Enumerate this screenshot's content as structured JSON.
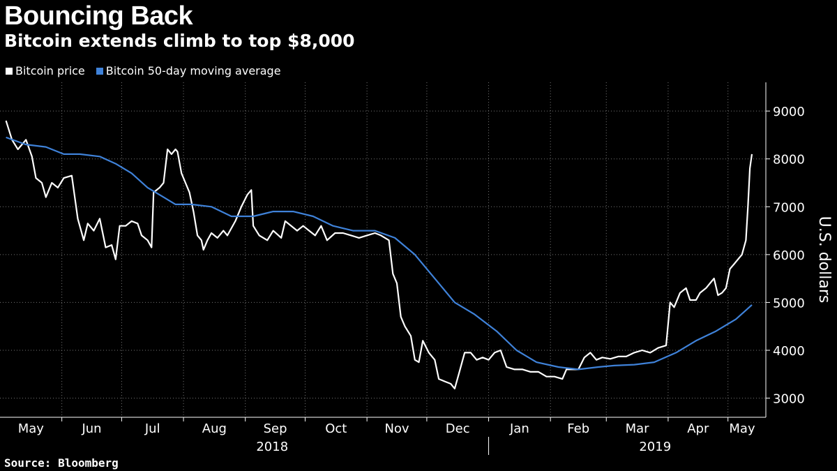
{
  "header": {
    "title": "Bouncing Back",
    "subtitle": "Bitcoin extends climb to top $8,000"
  },
  "footer": {
    "source": "Source: Bloomberg"
  },
  "chart_data": {
    "type": "line",
    "title": "Bouncing Back",
    "subtitle": "Bitcoin extends climb to top $8,000",
    "ylabel": "U.S. dollars",
    "ylim": [
      2600,
      9600
    ],
    "yticks": [
      3000,
      4000,
      5000,
      6000,
      7000,
      8000,
      9000
    ],
    "grid": true,
    "legend_position": "top-left",
    "x_months": [
      "May",
      "Jun",
      "Jul",
      "Aug",
      "Sep",
      "Oct",
      "Nov",
      "Dec",
      "Jan",
      "Feb",
      "Mar",
      "Apr",
      "May"
    ],
    "x_years": [
      "2018",
      "2019"
    ],
    "colors": {
      "price": "#ffffff",
      "ma": "#3f82d9",
      "grid": "#777777",
      "background": "#000000"
    },
    "series": [
      {
        "name": "Bitcoin price",
        "color": "#ffffff",
        "points": [
          [
            "2018-05-04",
            8800
          ],
          [
            "2018-05-07",
            8400
          ],
          [
            "2018-05-10",
            8200
          ],
          [
            "2018-05-14",
            8400
          ],
          [
            "2018-05-17",
            8050
          ],
          [
            "2018-05-19",
            7600
          ],
          [
            "2018-05-22",
            7500
          ],
          [
            "2018-05-24",
            7200
          ],
          [
            "2018-05-27",
            7500
          ],
          [
            "2018-05-30",
            7400
          ],
          [
            "2018-06-02",
            7600
          ],
          [
            "2018-06-06",
            7650
          ],
          [
            "2018-06-09",
            6750
          ],
          [
            "2018-06-12",
            6300
          ],
          [
            "2018-06-14",
            6650
          ],
          [
            "2018-06-17",
            6500
          ],
          [
            "2018-06-20",
            6750
          ],
          [
            "2018-06-23",
            6150
          ],
          [
            "2018-06-26",
            6200
          ],
          [
            "2018-06-28",
            5900
          ],
          [
            "2018-06-30",
            6600
          ],
          [
            "2018-07-03",
            6600
          ],
          [
            "2018-07-06",
            6700
          ],
          [
            "2018-07-09",
            6650
          ],
          [
            "2018-07-11",
            6400
          ],
          [
            "2018-07-14",
            6300
          ],
          [
            "2018-07-16",
            6150
          ],
          [
            "2018-07-17",
            7300
          ],
          [
            "2018-07-20",
            7400
          ],
          [
            "2018-07-22",
            7500
          ],
          [
            "2018-07-24",
            8200
          ],
          [
            "2018-07-26",
            8100
          ],
          [
            "2018-07-28",
            8200
          ],
          [
            "2018-07-29",
            8150
          ],
          [
            "2018-07-31",
            7700
          ],
          [
            "2018-08-02",
            7500
          ],
          [
            "2018-08-04",
            7300
          ],
          [
            "2018-08-06",
            6900
          ],
          [
            "2018-08-08",
            6400
          ],
          [
            "2018-08-10",
            6300
          ],
          [
            "2018-08-11",
            6100
          ],
          [
            "2018-08-13",
            6300
          ],
          [
            "2018-08-15",
            6450
          ],
          [
            "2018-08-18",
            6350
          ],
          [
            "2018-08-21",
            6500
          ],
          [
            "2018-08-23",
            6400
          ],
          [
            "2018-08-27",
            6700
          ],
          [
            "2018-08-30",
            7000
          ],
          [
            "2018-09-02",
            7250
          ],
          [
            "2018-09-04",
            7350
          ],
          [
            "2018-09-05",
            6600
          ],
          [
            "2018-09-08",
            6400
          ],
          [
            "2018-09-12",
            6300
          ],
          [
            "2018-09-15",
            6500
          ],
          [
            "2018-09-19",
            6350
          ],
          [
            "2018-09-21",
            6700
          ],
          [
            "2018-09-24",
            6600
          ],
          [
            "2018-09-27",
            6500
          ],
          [
            "2018-09-30",
            6600
          ],
          [
            "2018-10-03",
            6500
          ],
          [
            "2018-10-06",
            6400
          ],
          [
            "2018-10-09",
            6600
          ],
          [
            "2018-10-12",
            6300
          ],
          [
            "2018-10-16",
            6450
          ],
          [
            "2018-10-20",
            6450
          ],
          [
            "2018-10-24",
            6400
          ],
          [
            "2018-10-28",
            6350
          ],
          [
            "2018-11-01",
            6400
          ],
          [
            "2018-11-05",
            6450
          ],
          [
            "2018-11-08",
            6400
          ],
          [
            "2018-11-12",
            6300
          ],
          [
            "2018-11-14",
            5600
          ],
          [
            "2018-11-16",
            5400
          ],
          [
            "2018-11-18",
            4700
          ],
          [
            "2018-11-20",
            4500
          ],
          [
            "2018-11-23",
            4300
          ],
          [
            "2018-11-25",
            3800
          ],
          [
            "2018-11-27",
            3750
          ],
          [
            "2018-11-29",
            4200
          ],
          [
            "2018-12-02",
            3950
          ],
          [
            "2018-12-05",
            3800
          ],
          [
            "2018-12-07",
            3400
          ],
          [
            "2018-12-10",
            3350
          ],
          [
            "2018-12-13",
            3300
          ],
          [
            "2018-12-15",
            3200
          ],
          [
            "2018-12-17",
            3500
          ],
          [
            "2018-12-20",
            3950
          ],
          [
            "2018-12-23",
            3950
          ],
          [
            "2018-12-26",
            3800
          ],
          [
            "2018-12-29",
            3850
          ],
          [
            "2019-01-01",
            3800
          ],
          [
            "2019-01-04",
            3950
          ],
          [
            "2019-01-07",
            4000
          ],
          [
            "2019-01-10",
            3650
          ],
          [
            "2019-01-14",
            3600
          ],
          [
            "2019-01-18",
            3600
          ],
          [
            "2019-01-22",
            3550
          ],
          [
            "2019-01-26",
            3550
          ],
          [
            "2019-01-30",
            3450
          ],
          [
            "2019-02-03",
            3450
          ],
          [
            "2019-02-07",
            3400
          ],
          [
            "2019-02-09",
            3600
          ],
          [
            "2019-02-12",
            3600
          ],
          [
            "2019-02-15",
            3600
          ],
          [
            "2019-02-18",
            3850
          ],
          [
            "2019-02-21",
            3950
          ],
          [
            "2019-02-24",
            3800
          ],
          [
            "2019-02-27",
            3850
          ],
          [
            "2019-03-03",
            3820
          ],
          [
            "2019-03-07",
            3870
          ],
          [
            "2019-03-11",
            3870
          ],
          [
            "2019-03-15",
            3950
          ],
          [
            "2019-03-19",
            4000
          ],
          [
            "2019-03-23",
            3950
          ],
          [
            "2019-03-27",
            4050
          ],
          [
            "2019-03-31",
            4100
          ],
          [
            "2019-04-02",
            5000
          ],
          [
            "2019-04-04",
            4900
          ],
          [
            "2019-04-07",
            5200
          ],
          [
            "2019-04-10",
            5300
          ],
          [
            "2019-04-12",
            5050
          ],
          [
            "2019-04-15",
            5050
          ],
          [
            "2019-04-17",
            5200
          ],
          [
            "2019-04-20",
            5300
          ],
          [
            "2019-04-22",
            5400
          ],
          [
            "2019-04-24",
            5500
          ],
          [
            "2019-04-26",
            5150
          ],
          [
            "2019-04-28",
            5200
          ],
          [
            "2019-04-30",
            5300
          ],
          [
            "2019-05-02",
            5700
          ],
          [
            "2019-05-04",
            5800
          ],
          [
            "2019-05-06",
            5900
          ],
          [
            "2019-05-08",
            6000
          ],
          [
            "2019-05-10",
            6300
          ],
          [
            "2019-05-11",
            7000
          ],
          [
            "2019-05-12",
            7800
          ],
          [
            "2019-05-13",
            8100
          ]
        ]
      },
      {
        "name": "Bitcoin 50-day moving average",
        "color": "#3f82d9",
        "points": [
          [
            "2018-05-04",
            8450
          ],
          [
            "2018-05-14",
            8300
          ],
          [
            "2018-05-24",
            8250
          ],
          [
            "2018-06-02",
            8100
          ],
          [
            "2018-06-10",
            8100
          ],
          [
            "2018-06-20",
            8050
          ],
          [
            "2018-06-28",
            7900
          ],
          [
            "2018-07-06",
            7700
          ],
          [
            "2018-07-14",
            7400
          ],
          [
            "2018-07-22",
            7200
          ],
          [
            "2018-07-28",
            7050
          ],
          [
            "2018-08-05",
            7050
          ],
          [
            "2018-08-15",
            7000
          ],
          [
            "2018-08-25",
            6800
          ],
          [
            "2018-09-05",
            6800
          ],
          [
            "2018-09-15",
            6900
          ],
          [
            "2018-09-25",
            6900
          ],
          [
            "2018-10-05",
            6800
          ],
          [
            "2018-10-15",
            6600
          ],
          [
            "2018-10-25",
            6500
          ],
          [
            "2018-11-05",
            6500
          ],
          [
            "2018-11-15",
            6350
          ],
          [
            "2018-11-25",
            6000
          ],
          [
            "2018-12-05",
            5500
          ],
          [
            "2018-12-15",
            5000
          ],
          [
            "2018-12-25",
            4750
          ],
          [
            "2019-01-05",
            4400
          ],
          [
            "2019-01-15",
            4000
          ],
          [
            "2019-01-25",
            3750
          ],
          [
            "2019-02-05",
            3650
          ],
          [
            "2019-02-15",
            3600
          ],
          [
            "2019-02-25",
            3650
          ],
          [
            "2019-03-05",
            3680
          ],
          [
            "2019-03-15",
            3700
          ],
          [
            "2019-03-25",
            3750
          ],
          [
            "2019-04-05",
            3950
          ],
          [
            "2019-04-15",
            4200
          ],
          [
            "2019-04-25",
            4400
          ],
          [
            "2019-05-05",
            4650
          ],
          [
            "2019-05-13",
            4950
          ]
        ]
      }
    ]
  }
}
